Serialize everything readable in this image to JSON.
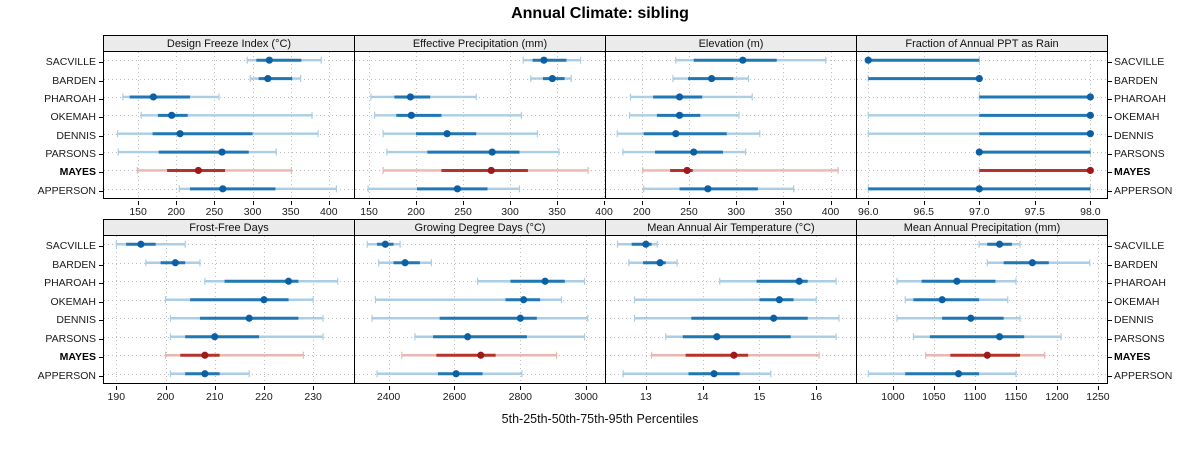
{
  "title": "Annual Climate: sibling",
  "caption": "5th-25th-50th-75th-95th Percentiles",
  "stations": [
    "SACVILLE",
    "BARDEN",
    "PHAROAH",
    "OKEMAH",
    "DENNIS",
    "PARSONS",
    "MAYES",
    "APPERSON"
  ],
  "highlight_station": "MAYES",
  "colors": {
    "blue_pale": "#A9CEE5",
    "blue_solid": "#1F77B4",
    "blue_dot": "#0B5FA4",
    "red_pale": "#EAB6B0",
    "red_solid": "#B5332B",
    "red_dot": "#9E1A1A",
    "header_bg": "#EBEBEB",
    "panel_border": "#000000",
    "grid": "#BEBEBE",
    "text": "#1A1A1A"
  },
  "chart_data": [
    {
      "type": "percentile-range",
      "title": "Design Freeze Index (°C)",
      "xlim": [
        104,
        433
      ],
      "ticks": [
        150,
        200,
        250,
        300,
        350,
        400
      ],
      "decimals": 0,
      "percentile_labels": [
        "p5",
        "p25",
        "p50",
        "p75",
        "p95"
      ],
      "series": [
        {
          "name": "SACVILLE",
          "values": [
            293,
            305,
            322,
            364,
            390
          ]
        },
        {
          "name": "BARDEN",
          "values": [
            297,
            308,
            320,
            352,
            363
          ]
        },
        {
          "name": "PHAROAH",
          "values": [
            130,
            139,
            170,
            218,
            256
          ]
        },
        {
          "name": "OKEMAH",
          "values": [
            154,
            176,
            194,
            215,
            378
          ]
        },
        {
          "name": "DENNIS",
          "values": [
            123,
            169,
            205,
            300,
            386
          ]
        },
        {
          "name": "PARSONS",
          "values": [
            124,
            177,
            260,
            295,
            331
          ]
        },
        {
          "name": "MAYES",
          "values": [
            149,
            188,
            229,
            264,
            351
          ]
        },
        {
          "name": "APPERSON",
          "values": [
            204,
            218,
            261,
            330,
            410
          ]
        }
      ]
    },
    {
      "type": "percentile-range",
      "title": "Effective Precipitation (mm)",
      "xlim": [
        134,
        401
      ],
      "ticks": [
        150,
        200,
        250,
        300,
        350,
        400
      ],
      "decimals": 0,
      "series": [
        {
          "name": "SACVILLE",
          "values": [
            314,
            324,
            336,
            360,
            375
          ]
        },
        {
          "name": "BARDEN",
          "values": [
            322,
            335,
            345,
            358,
            365
          ]
        },
        {
          "name": "PHAROAH",
          "values": [
            152,
            177,
            194,
            215,
            264
          ]
        },
        {
          "name": "OKEMAH",
          "values": [
            156,
            179,
            195,
            227,
            312
          ]
        },
        {
          "name": "DENNIS",
          "values": [
            165,
            200,
            233,
            264,
            329
          ]
        },
        {
          "name": "PARSONS",
          "values": [
            169,
            212,
            281,
            310,
            352
          ]
        },
        {
          "name": "MAYES",
          "values": [
            165,
            227,
            280,
            319,
            383
          ]
        },
        {
          "name": "APPERSON",
          "values": [
            149,
            201,
            244,
            276,
            310
          ]
        }
      ]
    },
    {
      "type": "percentile-range",
      "title": "Elevation (m)",
      "xlim": [
        161,
        427
      ],
      "ticks": [
        200,
        250,
        300,
        350,
        400
      ],
      "decimals": 0,
      "series": [
        {
          "name": "SACVILLE",
          "values": [
            236,
            255,
            307,
            343,
            395
          ]
        },
        {
          "name": "BARDEN",
          "values": [
            233,
            249,
            274,
            297,
            313
          ]
        },
        {
          "name": "PHAROAH",
          "values": [
            188,
            212,
            240,
            264,
            317
          ]
        },
        {
          "name": "OKEMAH",
          "values": [
            187,
            216,
            240,
            262,
            303
          ]
        },
        {
          "name": "DENNIS",
          "values": [
            174,
            202,
            236,
            290,
            325
          ]
        },
        {
          "name": "PARSONS",
          "values": [
            180,
            214,
            255,
            286,
            310
          ]
        },
        {
          "name": "MAYES",
          "values": [
            201,
            230,
            248,
            254,
            408
          ]
        },
        {
          "name": "APPERSON",
          "values": [
            202,
            240,
            270,
            323,
            361
          ]
        }
      ]
    },
    {
      "type": "percentile-range",
      "title": "Fraction of Annual PPT as Rain",
      "xlim": [
        95.89,
        98.15
      ],
      "ticks": [
        96.0,
        96.5,
        97.0,
        97.5,
        98.0
      ],
      "decimals": 1,
      "series": [
        {
          "name": "SACVILLE",
          "values": [
            96,
            96,
            96,
            97,
            97
          ]
        },
        {
          "name": "BARDEN",
          "values": [
            96,
            96,
            97,
            97,
            97
          ]
        },
        {
          "name": "PHAROAH",
          "values": [
            97,
            97,
            98,
            98,
            98
          ]
        },
        {
          "name": "OKEMAH",
          "values": [
            96,
            97,
            98,
            98,
            98
          ]
        },
        {
          "name": "DENNIS",
          "values": [
            96,
            97,
            98,
            98,
            98
          ]
        },
        {
          "name": "PARSONS",
          "values": [
            97,
            97,
            97,
            98,
            98
          ]
        },
        {
          "name": "MAYES",
          "values": [
            97,
            97,
            98,
            98,
            98
          ]
        },
        {
          "name": "APPERSON",
          "values": [
            96,
            96,
            97,
            98,
            98
          ]
        }
      ]
    },
    {
      "type": "percentile-range",
      "title": "Frost-Free Days",
      "xlim": [
        187.3,
        238.3
      ],
      "ticks": [
        190,
        200,
        210,
        220,
        230
      ],
      "decimals": 0,
      "series": [
        {
          "name": "SACVILLE",
          "values": [
            190,
            192,
            195,
            198,
            204
          ]
        },
        {
          "name": "BARDEN",
          "values": [
            196,
            199,
            202,
            204,
            207
          ]
        },
        {
          "name": "PHAROAH",
          "values": [
            208,
            212,
            225,
            227,
            235
          ]
        },
        {
          "name": "OKEMAH",
          "values": [
            200,
            205,
            220,
            225,
            230
          ]
        },
        {
          "name": "DENNIS",
          "values": [
            201,
            207,
            217,
            227,
            232
          ]
        },
        {
          "name": "PARSONS",
          "values": [
            201,
            204,
            210,
            219,
            232
          ]
        },
        {
          "name": "MAYES",
          "values": [
            200,
            203,
            208,
            211,
            228
          ]
        },
        {
          "name": "APPERSON",
          "values": [
            201,
            204,
            208,
            211,
            217
          ]
        }
      ]
    },
    {
      "type": "percentile-range",
      "title": "Growing Degree Days (°C)",
      "xlim": [
        2295,
        3057
      ],
      "ticks": [
        2400,
        2600,
        2800,
        3000
      ],
      "decimals": 0,
      "series": [
        {
          "name": "SACVILLE",
          "values": [
            2335,
            2365,
            2390,
            2415,
            2435
          ]
        },
        {
          "name": "BARDEN",
          "values": [
            2370,
            2415,
            2450,
            2495,
            2530
          ]
        },
        {
          "name": "PHAROAH",
          "values": [
            2670,
            2770,
            2875,
            2935,
            2995
          ]
        },
        {
          "name": "OKEMAH",
          "values": [
            2360,
            2755,
            2810,
            2860,
            2925
          ]
        },
        {
          "name": "DENNIS",
          "values": [
            2350,
            2555,
            2800,
            2850,
            3005
          ]
        },
        {
          "name": "PARSONS",
          "values": [
            2480,
            2535,
            2640,
            2820,
            2995
          ]
        },
        {
          "name": "MAYES",
          "values": [
            2440,
            2545,
            2680,
            2725,
            2910
          ]
        },
        {
          "name": "APPERSON",
          "values": [
            2365,
            2550,
            2605,
            2685,
            2805
          ]
        }
      ]
    },
    {
      "type": "percentile-range",
      "title": "Mean Annual Air Temperature (°C)",
      "xlim": [
        12.28,
        16.7
      ],
      "ticks": [
        13,
        14,
        15,
        16
      ],
      "decimals": 0,
      "series": [
        {
          "name": "SACVILLE",
          "values": [
            12.5,
            12.75,
            13.0,
            13.1,
            13.2
          ]
        },
        {
          "name": "BARDEN",
          "values": [
            12.7,
            12.95,
            13.25,
            13.35,
            13.55
          ]
        },
        {
          "name": "PHAROAH",
          "values": [
            14.3,
            14.95,
            15.7,
            15.85,
            16.35
          ]
        },
        {
          "name": "OKEMAH",
          "values": [
            12.8,
            15.0,
            15.35,
            15.6,
            16.0
          ]
        },
        {
          "name": "DENNIS",
          "values": [
            12.8,
            13.8,
            15.25,
            15.85,
            16.4
          ]
        },
        {
          "name": "PARSONS",
          "values": [
            13.35,
            13.65,
            14.25,
            15.55,
            16.35
          ]
        },
        {
          "name": "MAYES",
          "values": [
            13.1,
            13.7,
            14.55,
            14.8,
            16.05
          ]
        },
        {
          "name": "APPERSON",
          "values": [
            12.6,
            13.75,
            14.2,
            14.65,
            15.2
          ]
        }
      ]
    },
    {
      "type": "percentile-range",
      "title": "Mean Annual Precipitation (mm)",
      "xlim": [
        955,
        1261
      ],
      "ticks": [
        1000,
        1050,
        1100,
        1150,
        1200,
        1250
      ],
      "decimals": 0,
      "series": [
        {
          "name": "SACVILLE",
          "values": [
            1105,
            1115,
            1130,
            1145,
            1155
          ]
        },
        {
          "name": "BARDEN",
          "values": [
            1115,
            1135,
            1170,
            1190,
            1240
          ]
        },
        {
          "name": "PHAROAH",
          "values": [
            1005,
            1035,
            1078,
            1125,
            1150
          ]
        },
        {
          "name": "OKEMAH",
          "values": [
            1015,
            1025,
            1060,
            1105,
            1140
          ]
        },
        {
          "name": "DENNIS",
          "values": [
            1005,
            1060,
            1095,
            1135,
            1155
          ]
        },
        {
          "name": "PARSONS",
          "values": [
            1025,
            1045,
            1130,
            1160,
            1205
          ]
        },
        {
          "name": "MAYES",
          "values": [
            1040,
            1070,
            1115,
            1155,
            1185
          ]
        },
        {
          "name": "APPERSON",
          "values": [
            970,
            1015,
            1080,
            1105,
            1150
          ]
        }
      ]
    }
  ]
}
